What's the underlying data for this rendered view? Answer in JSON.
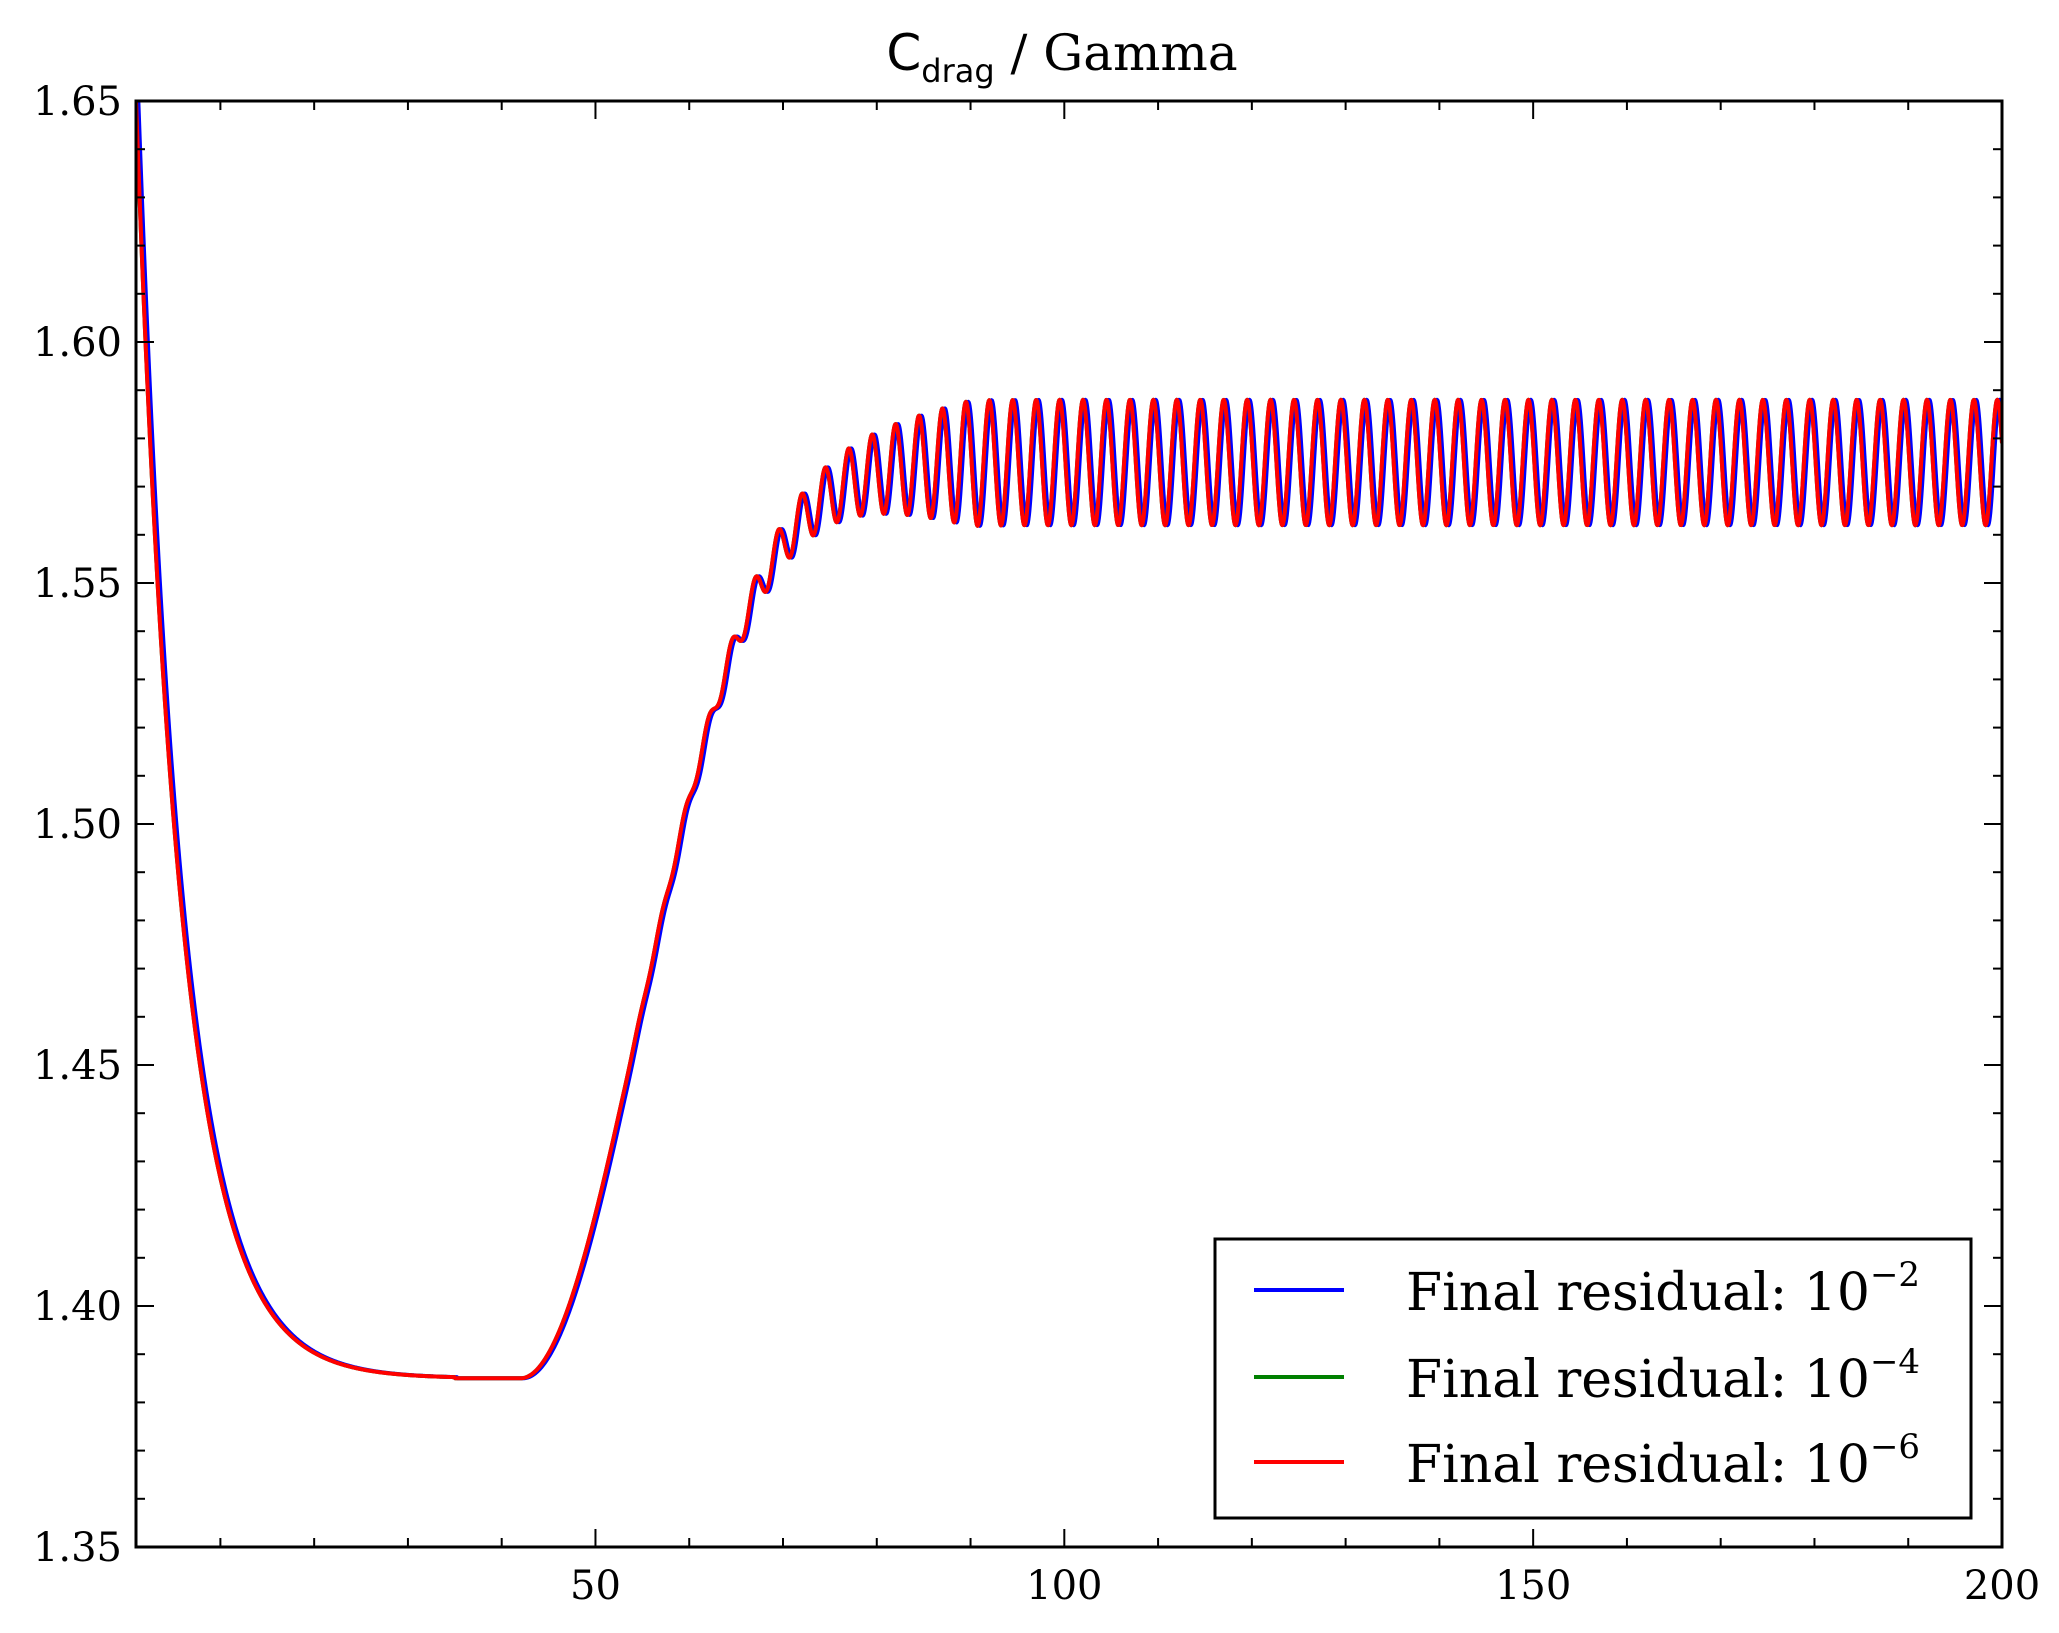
{
  "chart_data": {
    "type": "line",
    "title": {
      "symbol": "C",
      "subscript": "drag",
      "suffix": " / Gamma"
    },
    "xlabel": "",
    "ylabel": "",
    "xlim": [
      1,
      200
    ],
    "ylim": [
      1.35,
      1.65
    ],
    "x_ticks": [
      50,
      100,
      150,
      200
    ],
    "y_ticks": [
      1.35,
      1.4,
      1.45,
      1.5,
      1.55,
      1.6,
      1.65
    ],
    "x_tick_labels": [
      "50",
      "100",
      "150",
      "200"
    ],
    "y_tick_labels": [
      "1.35",
      "1.40",
      "1.45",
      "1.50",
      "1.55",
      "1.60",
      "1.65"
    ],
    "grid": false,
    "legend_position": "bottom-right",
    "curve_shape": {
      "start": [
        1,
        1.65
      ],
      "minimum": [
        35,
        1.385
      ],
      "rise_start_x": 42,
      "oscillation_onset_x": 52,
      "oscillation_period": 2.5,
      "steady_mean": 1.575,
      "steady_amplitude": 0.013,
      "steady_reached_x": 90,
      "end": [
        200,
        1.565
      ]
    },
    "series": [
      {
        "name": "Final residual: 10^-2",
        "label": "Final residual: 10",
        "exponent": "−2",
        "color": "#0000ff",
        "x_shift": 0.25
      },
      {
        "name": "Final residual: 10^-4",
        "label": "Final residual: 10",
        "exponent": "−4",
        "color": "#008000",
        "x_shift": 0.0
      },
      {
        "name": "Final residual: 10^-6",
        "label": "Final residual: 10",
        "exponent": "−6",
        "color": "#ff0000",
        "x_shift": 0.0
      }
    ]
  }
}
